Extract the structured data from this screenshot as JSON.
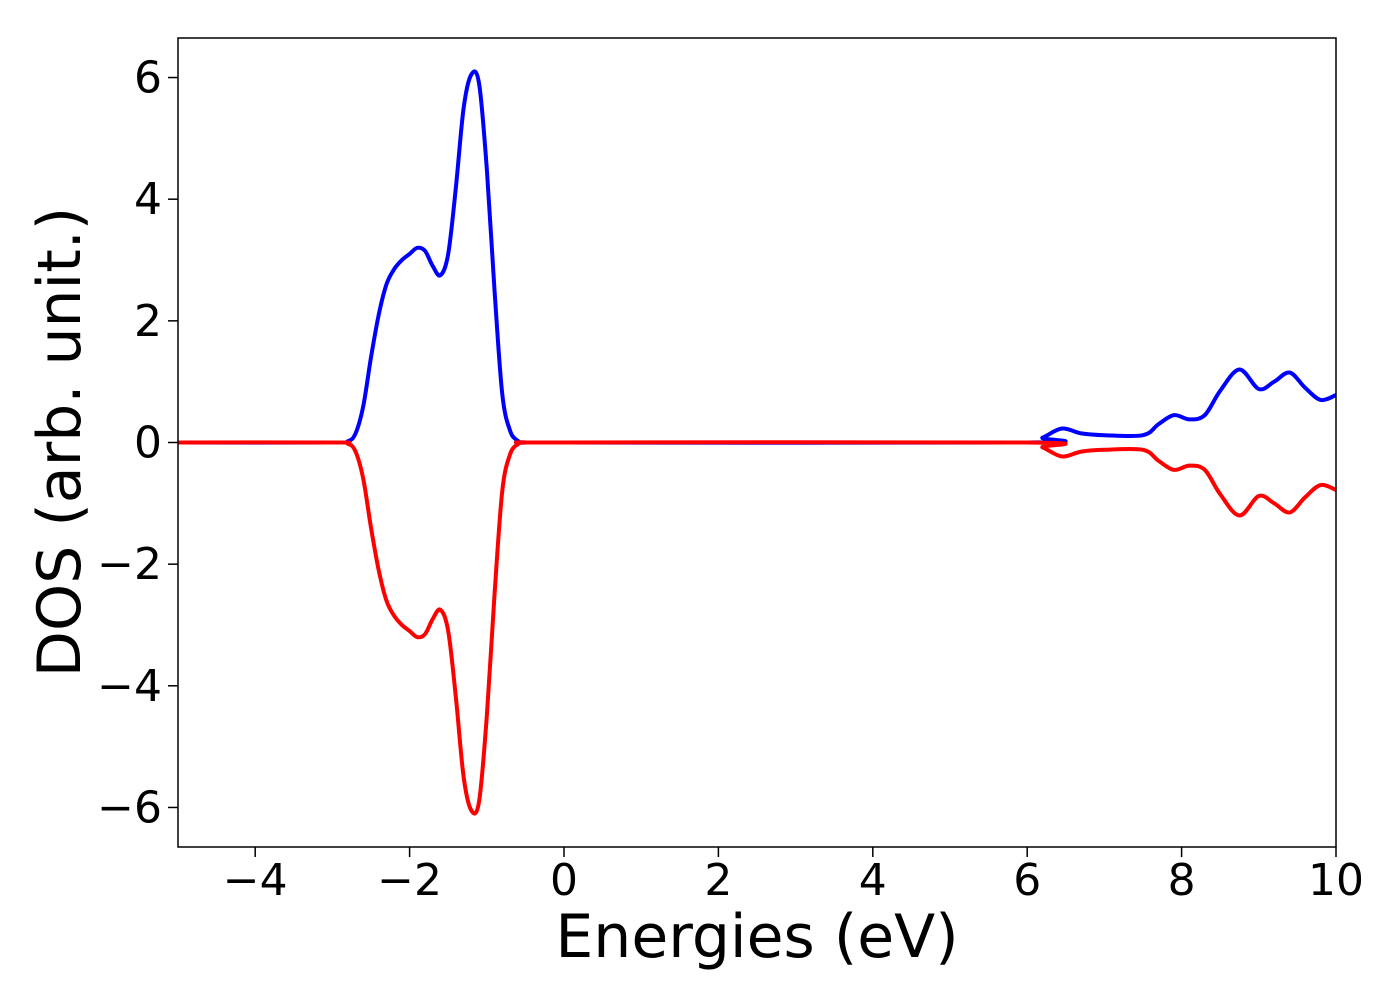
{
  "chart_data": {
    "type": "line",
    "title": "",
    "xlabel": "Energies (eV)",
    "ylabel": "DOS (arb. unit.)",
    "xlim": [
      -5,
      10
    ],
    "ylim": [
      -6.65,
      6.65
    ],
    "xticks": [
      -4,
      -2,
      0,
      2,
      4,
      6,
      8,
      10
    ],
    "yticks": [
      -6,
      -4,
      -2,
      0,
      2,
      4,
      6
    ],
    "xtick_labels": [
      "−4",
      "−2",
      "0",
      "2",
      "4",
      "6",
      "8",
      "10"
    ],
    "ytick_labels": [
      "−6",
      "−4",
      "−2",
      "0",
      "2",
      "4",
      "6"
    ],
    "grid": false,
    "legend": "none",
    "series": [
      {
        "color": "#0000ff",
        "x": [
          -5.0,
          -3.0,
          -2.8,
          -2.7,
          -2.6,
          -2.5,
          -2.4,
          -2.3,
          -2.2,
          -2.1,
          -2.0,
          -1.9,
          -1.8,
          -1.7,
          -1.6,
          -1.5,
          -1.4,
          -1.3,
          -1.2,
          -1.1,
          -1.0,
          -0.9,
          -0.8,
          -0.7,
          -0.6,
          -0.5,
          0.0,
          6.0,
          6.2,
          6.45,
          6.7,
          7.0,
          7.5,
          7.7,
          7.9,
          8.1,
          8.3,
          8.5,
          8.75,
          9.0,
          9.2,
          9.4,
          9.6,
          9.8,
          10.0
        ],
        "y": [
          0.0,
          0.0,
          0.02,
          0.15,
          0.6,
          1.4,
          2.1,
          2.6,
          2.85,
          3.0,
          3.1,
          3.2,
          3.15,
          2.9,
          2.75,
          3.1,
          4.2,
          5.5,
          6.05,
          5.9,
          4.5,
          2.5,
          0.8,
          0.2,
          0.03,
          0.0,
          0.0,
          0.0,
          0.08,
          0.23,
          0.15,
          0.12,
          0.12,
          0.3,
          0.45,
          0.38,
          0.45,
          0.85,
          1.2,
          0.88,
          1.0,
          1.15,
          0.9,
          0.7,
          0.78
        ]
      },
      {
        "color": "#ff0000",
        "x": [
          -5.0,
          -3.0,
          -2.8,
          -2.7,
          -2.6,
          -2.5,
          -2.4,
          -2.3,
          -2.2,
          -2.1,
          -2.0,
          -1.9,
          -1.8,
          -1.7,
          -1.6,
          -1.5,
          -1.4,
          -1.3,
          -1.2,
          -1.1,
          -1.0,
          -0.9,
          -0.8,
          -0.7,
          -0.6,
          -0.5,
          0.0,
          6.0,
          6.2,
          6.45,
          6.7,
          7.0,
          7.5,
          7.7,
          7.9,
          8.1,
          8.3,
          8.5,
          8.75,
          9.0,
          9.2,
          9.4,
          9.6,
          9.8,
          10.0
        ],
        "y": [
          0.0,
          0.0,
          -0.02,
          -0.15,
          -0.6,
          -1.4,
          -2.1,
          -2.6,
          -2.85,
          -3.0,
          -3.1,
          -3.2,
          -3.15,
          -2.9,
          -2.75,
          -3.1,
          -4.2,
          -5.5,
          -6.05,
          -5.9,
          -4.5,
          -2.5,
          -0.8,
          -0.2,
          -0.03,
          0.0,
          0.0,
          0.0,
          -0.08,
          -0.23,
          -0.15,
          -0.12,
          -0.12,
          -0.3,
          -0.45,
          -0.38,
          -0.45,
          -0.85,
          -1.2,
          -0.88,
          -1.0,
          -1.15,
          -0.9,
          -0.7,
          -0.78
        ]
      }
    ]
  }
}
